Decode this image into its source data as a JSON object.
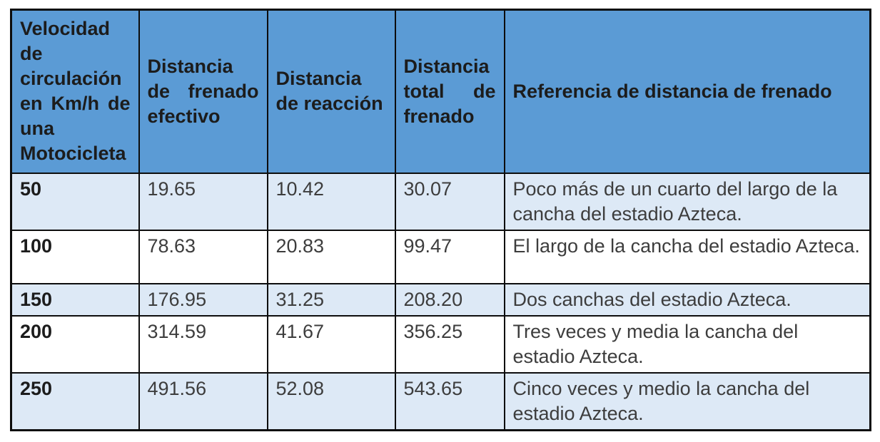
{
  "chart_data": {
    "type": "table",
    "columns": [
      "Velocidad de circulación en Km/h de una Motocicleta",
      "Distancia de frenado efectivo",
      "Distancia de reacción",
      "Distancia total de frenado",
      "Referencia de distancia de frenado"
    ],
    "rows": [
      {
        "velocidad": "50",
        "frenado_efectivo": "19.65",
        "reaccion": "10.42",
        "total": "30.07",
        "referencia": "Poco más de un cuarto del largo de la cancha del estadio Azteca."
      },
      {
        "velocidad": "100",
        "frenado_efectivo": "78.63",
        "reaccion": "20.83",
        "total": "99.47",
        "referencia": "El largo de la cancha del estadio Azteca."
      },
      {
        "velocidad": "150",
        "frenado_efectivo": "176.95",
        "reaccion": "31.25",
        "total": "208.20",
        "referencia": "Dos canchas del estadio Azteca."
      },
      {
        "velocidad": "200",
        "frenado_efectivo": "314.59",
        "reaccion": "41.67",
        "total": "356.25",
        "referencia": "Tres veces y media la cancha del estadio Azteca."
      },
      {
        "velocidad": "250",
        "frenado_efectivo": "491.56",
        "reaccion": "52.08",
        "total": "543.65",
        "referencia": "Cinco veces y medio la cancha del estadio Azteca."
      }
    ]
  },
  "colors": {
    "header_background": "#5b9bd5",
    "band_row_background": "#dde9f6",
    "white_row_background": "#ffffff",
    "border": "#0d0d0d",
    "header_text": "#1c1c1c",
    "body_text": "#3d3d3d"
  }
}
